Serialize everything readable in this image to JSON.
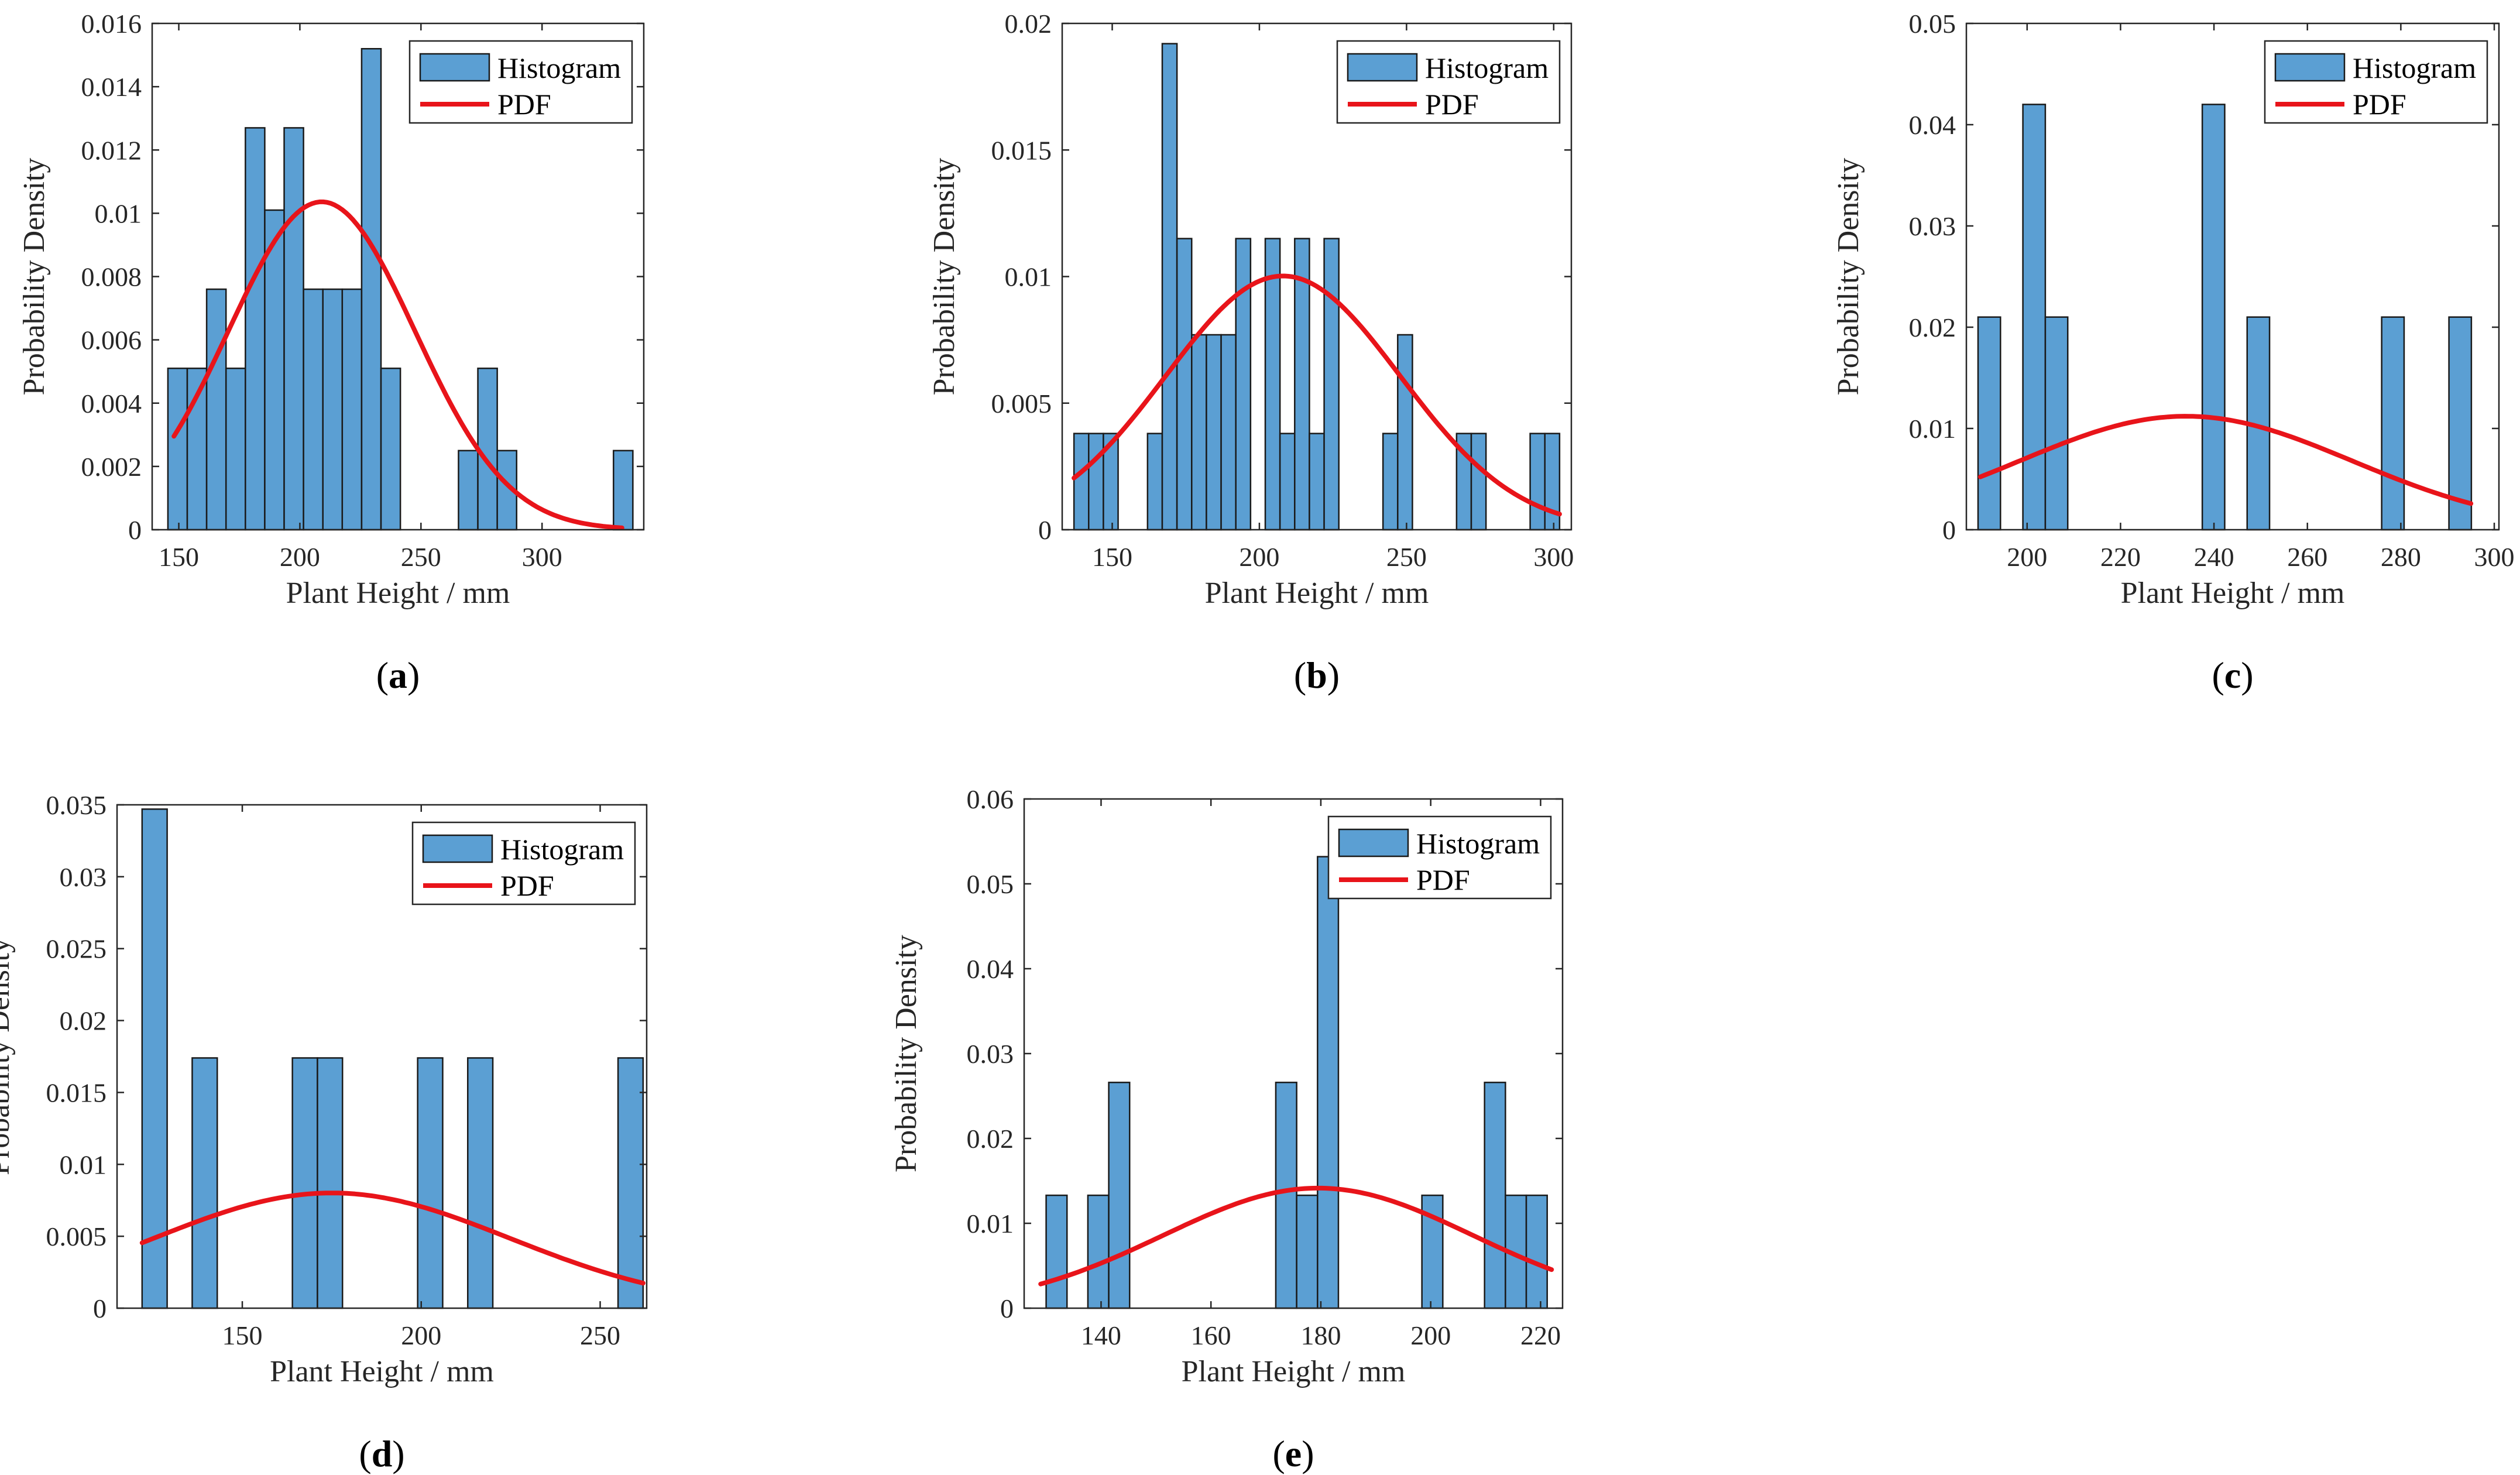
{
  "colors": {
    "bar": "#5b9fd3",
    "pdf": "#e8141a"
  },
  "chart_data": [
    {
      "id": "a",
      "type": "bar",
      "panel_label": "a",
      "xlabel": "Plant Height / mm",
      "ylabel": "Probability Density",
      "legend": [
        "Histogram",
        "PDF"
      ],
      "xlim": [
        139,
        342
      ],
      "ylim": [
        0,
        0.016
      ],
      "xticks": [
        150,
        200,
        250,
        300
      ],
      "xtick_labels": [
        "150",
        "200",
        "250",
        "300"
      ],
      "yticks": [
        0,
        0.002,
        0.004,
        0.006,
        0.008,
        0.01,
        0.012,
        0.014,
        0.016
      ],
      "ytick_labels": [
        "0",
        "0.002",
        "0.004",
        "0.006",
        "0.008",
        "0.01",
        "0.012",
        "0.014",
        "0.016"
      ],
      "bins": [
        [
          145.5,
          153.5
        ],
        [
          153.5,
          161.5
        ],
        [
          161.5,
          169.5
        ],
        [
          169.5,
          177.5
        ],
        [
          177.5,
          185.5
        ],
        [
          185.5,
          193.5
        ],
        [
          193.5,
          201.5
        ],
        [
          201.5,
          209.5
        ],
        [
          209.5,
          217.5
        ],
        [
          217.5,
          225.5
        ],
        [
          225.5,
          233.5
        ],
        [
          233.5,
          241.5
        ],
        [
          241.5,
          249.5
        ],
        [
          249.5,
          257.5
        ],
        [
          257.5,
          265.5
        ],
        [
          265.5,
          273.5
        ],
        [
          273.5,
          281.5
        ],
        [
          281.5,
          289.5
        ],
        [
          289.5,
          297.5
        ],
        [
          297.5,
          305.5
        ],
        [
          305.5,
          313.5
        ],
        [
          313.5,
          321.5
        ],
        [
          321.5,
          329.5
        ],
        [
          329.5,
          337.5
        ]
      ],
      "values": [
        0.0051,
        0.0051,
        0.0076,
        0.0051,
        0.0127,
        0.0101,
        0.0127,
        0.0076,
        0.0076,
        0.0076,
        0.0152,
        0.0051,
        0,
        0,
        0,
        0.0025,
        0.0051,
        0.0025,
        0,
        0,
        0,
        0,
        0,
        0.0025
      ],
      "pdf": {
        "mean": 209,
        "sd": 38.5,
        "x_range": [
          148,
          333
        ]
      }
    },
    {
      "id": "b",
      "type": "bar",
      "panel_label": "b",
      "xlabel": "Plant Height / mm",
      "ylabel": "Probability Density",
      "legend": [
        "Histogram",
        "PDF"
      ],
      "xlim": [
        133,
        306
      ],
      "ylim": [
        0,
        0.02
      ],
      "xticks": [
        150,
        200,
        250,
        300
      ],
      "xtick_labels": [
        "150",
        "200",
        "250",
        "300"
      ],
      "yticks": [
        0,
        0.005,
        0.01,
        0.015,
        0.02
      ],
      "ytick_labels": [
        "0",
        "0.005",
        "0.01",
        "0.015",
        "0.02"
      ],
      "bins": [
        [
          137,
          142
        ],
        [
          142,
          147
        ],
        [
          147,
          152
        ],
        [
          152,
          157
        ],
        [
          157,
          162
        ],
        [
          162,
          167
        ],
        [
          167,
          172
        ],
        [
          172,
          177
        ],
        [
          177,
          182
        ],
        [
          182,
          187
        ],
        [
          187,
          192
        ],
        [
          192,
          197
        ],
        [
          197,
          202
        ],
        [
          202,
          207
        ],
        [
          207,
          212
        ],
        [
          212,
          217
        ],
        [
          217,
          222
        ],
        [
          222,
          227
        ],
        [
          227,
          232
        ],
        [
          232,
          237
        ],
        [
          237,
          242
        ],
        [
          242,
          247
        ],
        [
          247,
          252
        ],
        [
          252,
          257
        ],
        [
          257,
          262
        ],
        [
          262,
          267
        ],
        [
          267,
          272
        ],
        [
          272,
          277
        ],
        [
          277,
          282
        ],
        [
          282,
          287
        ],
        [
          287,
          292
        ],
        [
          292,
          297
        ],
        [
          297,
          302
        ]
      ],
      "values": [
        0.0038,
        0.0038,
        0.0038,
        0,
        0,
        0.0038,
        0.0192,
        0.0115,
        0.0077,
        0.0077,
        0.0077,
        0.0115,
        0,
        0.0115,
        0.0038,
        0.0115,
        0.0038,
        0.0115,
        0,
        0,
        0,
        0.0038,
        0.0077,
        0,
        0,
        0,
        0.0038,
        0.0038,
        0,
        0,
        0,
        0.0038,
        0.0038
      ],
      "pdf": {
        "mean": 208,
        "sd": 39.8,
        "x_range": [
          137,
          302
        ]
      }
    },
    {
      "id": "c",
      "type": "bar",
      "panel_label": "c",
      "xlabel": "Plant Height / mm",
      "ylabel": "Probability Density",
      "legend": [
        "Histogram",
        "PDF"
      ],
      "xlim": [
        187,
        301
      ],
      "ylim": [
        0,
        0.05
      ],
      "xticks": [
        200,
        220,
        240,
        260,
        280,
        300
      ],
      "xtick_labels": [
        "200",
        "220",
        "240",
        "260",
        "280",
        "300"
      ],
      "yticks": [
        0,
        0.01,
        0.02,
        0.03,
        0.04,
        0.05
      ],
      "ytick_labels": [
        "0",
        "0.01",
        "0.02",
        "0.03",
        "0.04",
        "0.05"
      ],
      "bins": [
        [
          189.5,
          194.3
        ],
        [
          194.3,
          199.1
        ],
        [
          199.1,
          203.9
        ],
        [
          203.9,
          208.7
        ],
        [
          208.7,
          213.5
        ],
        [
          213.5,
          218.3
        ],
        [
          218.3,
          223.1
        ],
        [
          223.1,
          227.9
        ],
        [
          227.9,
          232.7
        ],
        [
          232.7,
          237.5
        ],
        [
          237.5,
          242.3
        ],
        [
          242.3,
          247.1
        ],
        [
          247.1,
          251.9
        ],
        [
          251.9,
          256.7
        ],
        [
          256.7,
          261.5
        ],
        [
          261.5,
          266.3
        ],
        [
          266.3,
          271.1
        ],
        [
          271.1,
          275.9
        ],
        [
          275.9,
          280.7
        ],
        [
          280.7,
          285.5
        ],
        [
          285.5,
          290.3
        ],
        [
          290.3,
          295.1
        ]
      ],
      "values": [
        0.021,
        0,
        0.042,
        0.021,
        0,
        0,
        0,
        0,
        0,
        0,
        0.042,
        0,
        0.021,
        0,
        0,
        0,
        0,
        0,
        0.021,
        0,
        0,
        0.021
      ],
      "pdf": {
        "mean": 234,
        "sd": 35.6,
        "x_range": [
          190,
          295
        ]
      }
    },
    {
      "id": "d",
      "type": "bar",
      "panel_label": "d",
      "xlabel": "Plant Height / mm",
      "ylabel": "Probability Density",
      "legend": [
        "Histogram",
        "PDF"
      ],
      "xlim": [
        115,
        263
      ],
      "ylim": [
        0,
        0.035
      ],
      "xticks": [
        150,
        200,
        250
      ],
      "xtick_labels": [
        "150",
        "200",
        "250"
      ],
      "yticks": [
        0,
        0.005,
        0.01,
        0.015,
        0.02,
        0.025,
        0.03,
        0.035
      ],
      "ytick_labels": [
        "0",
        "0.005",
        "0.01",
        "0.015",
        "0.02",
        "0.025",
        "0.03",
        "0.035"
      ],
      "bins": [
        [
          122,
          129
        ],
        [
          129,
          136
        ],
        [
          136,
          143
        ],
        [
          143,
          150
        ],
        [
          150,
          157
        ],
        [
          157,
          164
        ],
        [
          164,
          171
        ],
        [
          171,
          178
        ],
        [
          178,
          185
        ],
        [
          185,
          192
        ],
        [
          192,
          199
        ],
        [
          199,
          206
        ],
        [
          206,
          213
        ],
        [
          213,
          220
        ],
        [
          220,
          227
        ],
        [
          227,
          234
        ],
        [
          234,
          241
        ],
        [
          241,
          248
        ],
        [
          248,
          255
        ],
        [
          255,
          262
        ]
      ],
      "values": [
        0.0347,
        0,
        0.0174,
        0,
        0,
        0,
        0.0174,
        0.0174,
        0,
        0,
        0,
        0.0174,
        0,
        0.0174,
        0,
        0,
        0,
        0,
        0,
        0.0174
      ],
      "pdf": {
        "mean": 175,
        "sd": 49.8,
        "x_range": [
          122,
          262
        ]
      }
    },
    {
      "id": "e",
      "type": "bar",
      "panel_label": "e",
      "xlabel": "Plant Height / mm",
      "ylabel": "Probability Density",
      "legend": [
        "Histogram",
        "PDF"
      ],
      "xlim": [
        126,
        224
      ],
      "ylim": [
        0,
        0.06
      ],
      "xticks": [
        140,
        160,
        180,
        200,
        220
      ],
      "xtick_labels": [
        "140",
        "160",
        "180",
        "200",
        "220"
      ],
      "yticks": [
        0,
        0.01,
        0.02,
        0.03,
        0.04,
        0.05,
        0.06
      ],
      "ytick_labels": [
        "0",
        "0.01",
        "0.02",
        "0.03",
        "0.04",
        "0.05",
        "0.06"
      ],
      "bins": [
        [
          130,
          133.8
        ],
        [
          133.8,
          137.6
        ],
        [
          137.6,
          141.4
        ],
        [
          141.4,
          145.2
        ],
        [
          145.2,
          149
        ],
        [
          149,
          152.8
        ],
        [
          152.8,
          156.6
        ],
        [
          156.6,
          160.4
        ],
        [
          160.4,
          164.2
        ],
        [
          164.2,
          168
        ],
        [
          168,
          171.8
        ],
        [
          171.8,
          175.6
        ],
        [
          175.6,
          179.4
        ],
        [
          179.4,
          183.2
        ],
        [
          183.2,
          187
        ],
        [
          187,
          190.8
        ],
        [
          190.8,
          194.6
        ],
        [
          194.6,
          198.4
        ],
        [
          198.4,
          202.2
        ],
        [
          202.2,
          206
        ],
        [
          206,
          209.8
        ],
        [
          209.8,
          213.6
        ],
        [
          213.6,
          217.4
        ],
        [
          217.4,
          221.2
        ]
      ],
      "values": [
        0.0133,
        0,
        0.0133,
        0.0266,
        0,
        0,
        0,
        0,
        0,
        0,
        0,
        0.0266,
        0.0133,
        0.0532,
        0,
        0,
        0,
        0,
        0.0133,
        0,
        0,
        0.0266,
        0.0133,
        0.0133
      ],
      "pdf": {
        "mean": 179.5,
        "sd": 28.2,
        "x_range": [
          129,
          222
        ]
      }
    }
  ]
}
